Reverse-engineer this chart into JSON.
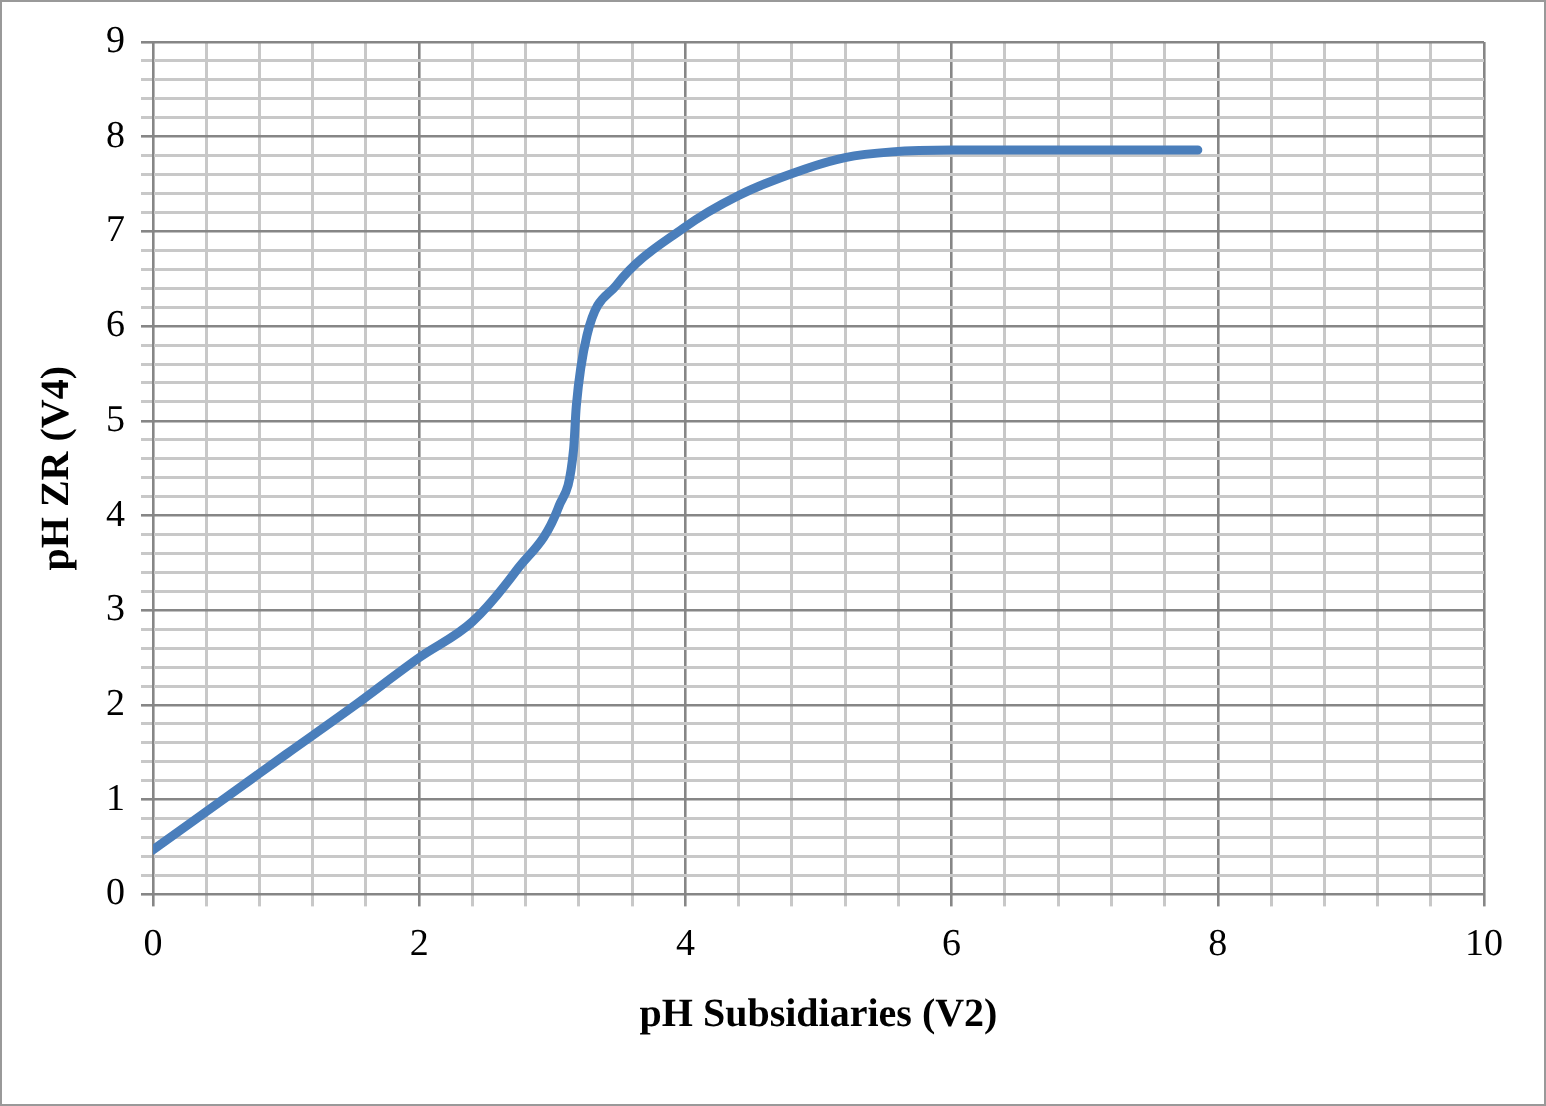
{
  "chart_data": {
    "type": "line",
    "xlabel": "pH Subsidiaries (V2)",
    "ylabel": "pH ZR (V4)",
    "x": [
      0,
      1,
      1.5,
      2,
      2.4,
      2.73,
      3.05,
      3.16,
      3.18,
      3.26,
      3.48,
      3.98,
      4.4,
      4.9,
      5.2,
      5.55,
      6,
      7,
      7.85
    ],
    "series": [
      {
        "color": "#4a7ebb",
        "values": [
          0.47,
          1.48,
          1.98,
          2.5,
          2.88,
          3.42,
          4.1,
          4.7,
          5.15,
          5.9,
          6.43,
          7.03,
          7.38,
          7.66,
          7.78,
          7.84,
          7.86,
          7.86,
          7.86
        ]
      }
    ],
    "xlim": [
      0,
      10
    ],
    "xticks": [
      0,
      {
        "value": 0.4,
        "label": null
      },
      {
        "value": 0.8,
        "label": null
      },
      {
        "value": 1.2,
        "label": null
      },
      {
        "value": 1.6,
        "label": null
      },
      2,
      {
        "value": 2.4,
        "label": null
      },
      {
        "value": 2.8,
        "label": null
      },
      {
        "value": 3.2,
        "label": null
      },
      {
        "value": 3.6,
        "label": null
      },
      4,
      {
        "value": 4.4,
        "label": null
      },
      {
        "value": 4.8,
        "label": null
      },
      {
        "value": 5.2,
        "label": null
      },
      {
        "value": 5.6,
        "label": null
      },
      6,
      {
        "value": 6.4,
        "label": null
      },
      {
        "value": 6.8,
        "label": null
      },
      {
        "value": 7.2,
        "label": null
      },
      {
        "value": 7.6,
        "label": null
      },
      8,
      {
        "value": 8.4,
        "label": null
      },
      {
        "value": 8.8,
        "label": null
      },
      {
        "value": 9.2,
        "label": null
      },
      {
        "value": 9.6,
        "label": null
      },
      10
    ],
    "ylim": [
      0,
      9
    ],
    "yticks": [
      0,
      {
        "value": 0.2,
        "label": null
      },
      {
        "value": 0.4,
        "label": null
      },
      {
        "value": 0.6,
        "label": null
      },
      {
        "value": 0.8,
        "label": null
      },
      1,
      {
        "value": 1.2,
        "label": null
      },
      {
        "value": 1.4,
        "label": null
      },
      {
        "value": 1.6,
        "label": null
      },
      {
        "value": 1.8,
        "label": null
      },
      2,
      {
        "value": 2.2,
        "label": null
      },
      {
        "value": 2.4,
        "label": null
      },
      {
        "value": 2.6,
        "label": null
      },
      {
        "value": 2.8,
        "label": null
      },
      3,
      {
        "value": 3.2,
        "label": null
      },
      {
        "value": 3.4,
        "label": null
      },
      {
        "value": 3.6,
        "label": null
      },
      {
        "value": 3.8,
        "label": null
      },
      4,
      {
        "value": 4.2,
        "label": null
      },
      {
        "value": 4.4,
        "label": null
      },
      {
        "value": 4.6,
        "label": null
      },
      {
        "value": 4.8,
        "label": null
      },
      5,
      {
        "value": 5.2,
        "label": null
      },
      {
        "value": 5.4,
        "label": null
      },
      {
        "value": 5.6,
        "label": null
      },
      {
        "value": 5.8,
        "label": null
      },
      6,
      {
        "value": 6.2,
        "label": null
      },
      {
        "value": 6.4,
        "label": null
      },
      {
        "value": 6.6,
        "label": null
      },
      {
        "value": 6.8,
        "label": null
      },
      7,
      {
        "value": 7.2,
        "label": null
      },
      {
        "value": 7.4,
        "label": null
      },
      {
        "value": 7.6,
        "label": null
      },
      {
        "value": 7.8,
        "label": null
      },
      8,
      {
        "value": 8.2,
        "label": null
      },
      {
        "value": 8.4,
        "label": null
      },
      {
        "value": 8.6,
        "label": null
      },
      {
        "value": 8.8,
        "label": null
      },
      9
    ],
    "grid": true,
    "legend": false,
    "marker": "none",
    "line_style": "solid"
  }
}
